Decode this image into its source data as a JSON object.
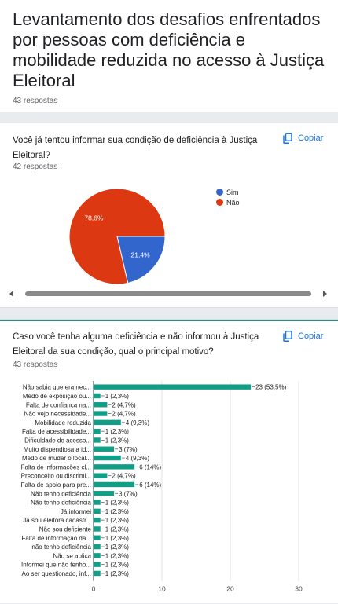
{
  "form": {
    "title": "Levantamento dos desafios enfrentados por pessoas com deficiência e mobilidade reduzida no acesso à Justiça Eleitoral",
    "responses": "43 respostas"
  },
  "copy_label": "Copiar",
  "q1": {
    "title": "Você já tentou informar sua condição de deficiência à Justiça Eleitoral?",
    "responses": "42 respostas",
    "legend": [
      {
        "label": "Sim",
        "color": "#3366cc"
      },
      {
        "label": "Não",
        "color": "#dc3912"
      }
    ],
    "chart_data": {
      "type": "pie",
      "categories": [
        "Sim",
        "Não"
      ],
      "values": [
        21.4,
        78.6
      ],
      "labels": [
        "21,4%",
        "78,6%"
      ],
      "colors": [
        "#3366cc",
        "#dc3912"
      ]
    }
  },
  "q2": {
    "title": "Caso você tenha alguma deficiência e não informou à Justiça Eleitoral da sua condição, qual o principal motivo?",
    "responses": "43 respostas",
    "chart_data": {
      "type": "bar",
      "orientation": "horizontal",
      "bar_color": "#119e87",
      "categories": [
        "Não sabia que era nec...",
        "Medo de exposição ou...",
        "Falta de confiança na...",
        "Não vejo necessidade...",
        "Mobilidade reduzida",
        "Falta de acessibilidade...",
        "Dificuldade de acesso...",
        "Muito dispendiosa a id...",
        "Medo de mudar o local...",
        "Falta de informações cl...",
        "Preconceito ou discrimi...",
        "Falta de apoio para pre...",
        "Não tenho deficiência",
        "Não tenho deficiência",
        "Já informei",
        "Já sou eleitora cadastr...",
        "Não sou deficiente",
        "Falta de informação da...",
        "não tenho deficiência",
        "Não se aplica",
        "Informei que não tenho...",
        "Ao ser questionado, inf..."
      ],
      "values": [
        23,
        1,
        2,
        2,
        4,
        1,
        1,
        3,
        4,
        6,
        2,
        6,
        3,
        1,
        1,
        1,
        1,
        1,
        1,
        1,
        1,
        1
      ],
      "value_labels": [
        "23 (53,5%)",
        "1 (2,3%)",
        "2 (4,7%)",
        "2 (4,7%)",
        "4 (9,3%)",
        "1 (2,3%)",
        "1 (2,3%)",
        "3 (7%)",
        "4 (9,3%)",
        "6 (14%)",
        "2 (4,7%)",
        "6 (14%)",
        "3 (7%)",
        "1 (2,3%)",
        "1 (2,3%)",
        "1 (2,3%)",
        "1 (2,3%)",
        "1 (2,3%)",
        "1 (2,3%)",
        "1 (2,3%)",
        "1 (2,3%)",
        "1 (2,3%)"
      ],
      "xlim": [
        0,
        30
      ],
      "xticks": [
        "0",
        "10",
        "20",
        "30"
      ]
    }
  }
}
